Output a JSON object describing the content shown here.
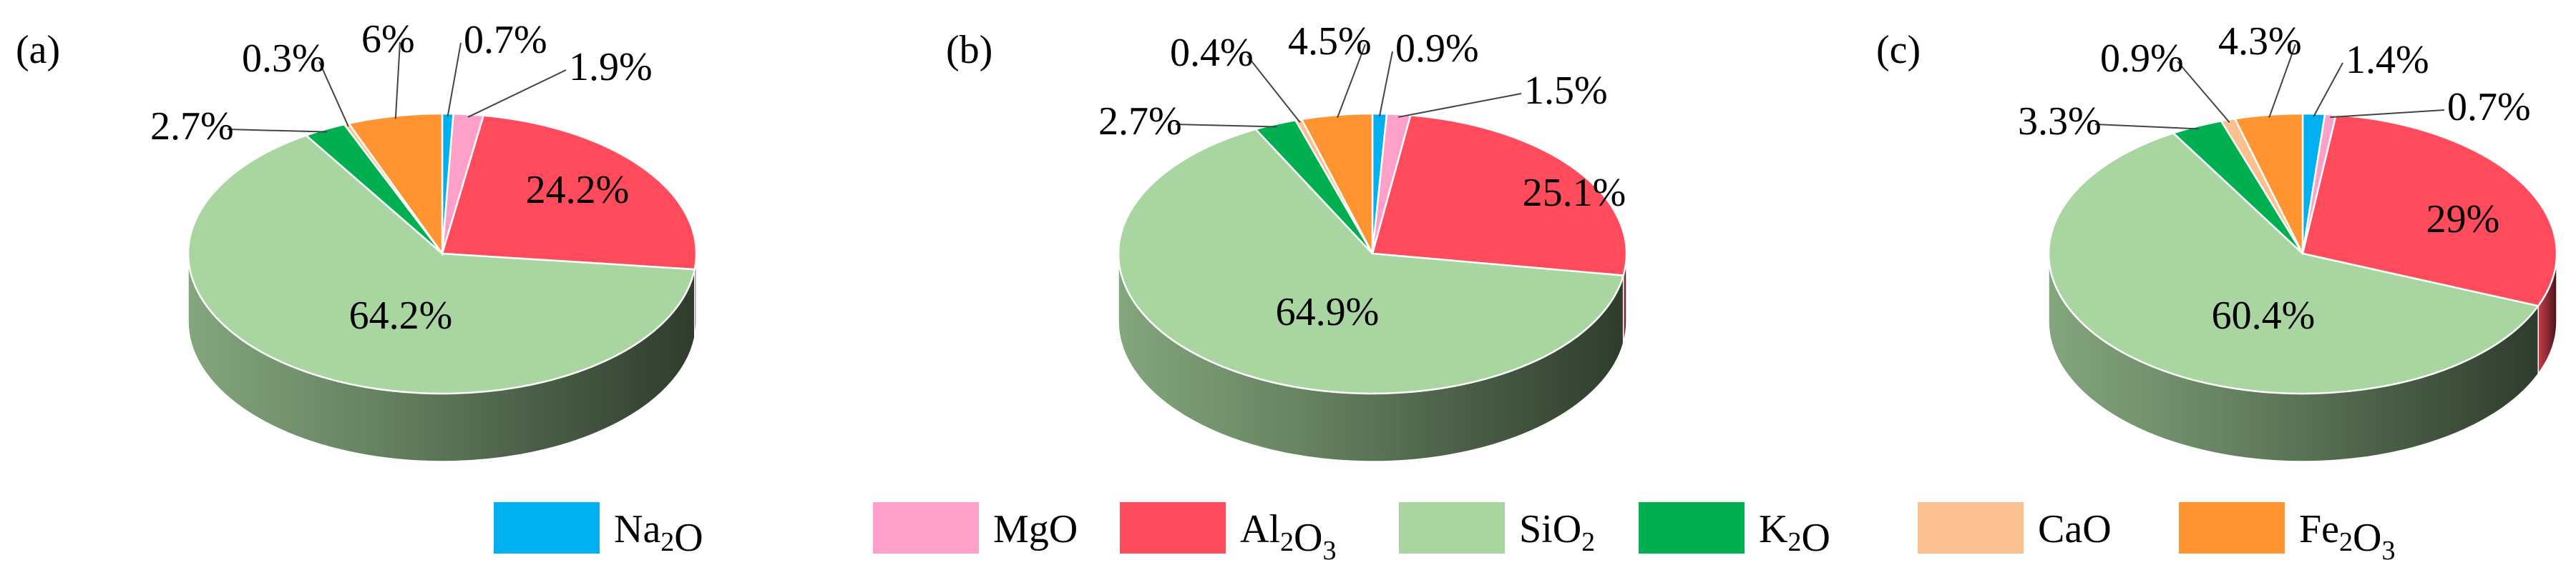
{
  "colors": {
    "Na2O": "#00B0F0",
    "MgO": "#FFA0C8",
    "Al2O3": "#FF4B5C",
    "SiO2": "#A8D5A0",
    "K2O": "#00B050",
    "CaO": "#FAC090",
    "Fe2O3": "#FF9430"
  },
  "legend": {
    "placement": "bottom",
    "items": [
      {
        "key": "Na2O",
        "base": "Na",
        "sub": "2",
        "tail": "O"
      },
      {
        "key": "MgO",
        "base": "MgO",
        "sub": "",
        "tail": ""
      },
      {
        "key": "Al2O3",
        "base": "Al",
        "sub": "2",
        "tail": "O",
        "sub2": "3"
      },
      {
        "key": "SiO2",
        "base": "SiO",
        "sub": "2",
        "tail": ""
      },
      {
        "key": "K2O",
        "base": "K",
        "sub": "2",
        "tail": "O"
      },
      {
        "key": "CaO",
        "base": "CaO",
        "sub": "",
        "tail": ""
      },
      {
        "key": "Fe2O3",
        "base": "Fe",
        "sub": "2",
        "tail": "O",
        "sub2": "3"
      }
    ]
  },
  "chart_data": [
    {
      "type": "pie",
      "panel_label": "(a)",
      "categories": [
        "Na2O",
        "MgO",
        "Al2O3",
        "SiO2",
        "K2O",
        "CaO",
        "Fe2O3"
      ],
      "values": [
        0.7,
        1.9,
        24.2,
        64.2,
        2.7,
        0.3,
        6
      ],
      "labels": [
        "0.7%",
        "1.9%",
        "24.2%",
        "64.2%",
        "2.7%",
        "0.3%",
        "6%"
      ]
    },
    {
      "type": "pie",
      "panel_label": "(b)",
      "categories": [
        "Na2O",
        "MgO",
        "Al2O3",
        "SiO2",
        "K2O",
        "CaO",
        "Fe2O3"
      ],
      "values": [
        0.9,
        1.5,
        25.1,
        64.9,
        2.7,
        0.4,
        4.5
      ],
      "labels": [
        "0.9%",
        "1.5%",
        "25.1%",
        "64.9%",
        "2.7%",
        "0.4%",
        "4.5%"
      ]
    },
    {
      "type": "pie",
      "panel_label": "(c)",
      "categories": [
        "Na2O",
        "MgO",
        "Al2O3",
        "SiO2",
        "K2O",
        "CaO",
        "Fe2O3"
      ],
      "values": [
        1.4,
        0.7,
        29,
        60.4,
        3.3,
        0.9,
        4.3
      ],
      "labels": [
        "1.4%",
        "0.7%",
        "29%",
        "60.4%",
        "3.3%",
        "0.9%",
        "4.3%"
      ]
    }
  ]
}
